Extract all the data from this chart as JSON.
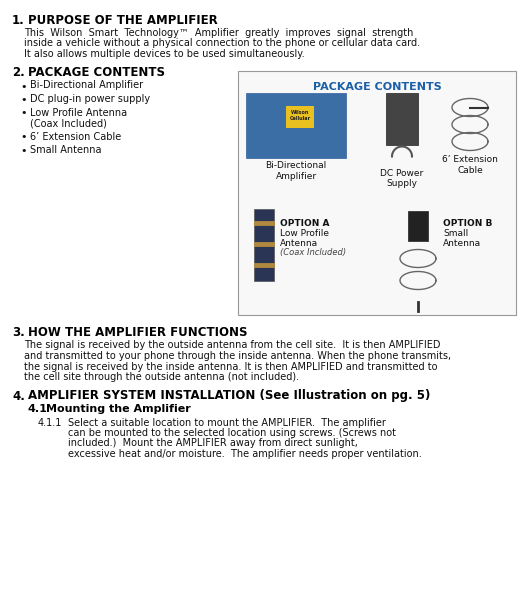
{
  "bg_color": "#ffffff",
  "section1_number": "1.",
  "section1_heading": "PURPOSE OF THE AMPLIFIER",
  "section1_body_lines": [
    "This  Wilson  Smart  Technology™  Amplifier  greatly  improves  signal  strength",
    "inside a vehicle without a physical connection to the phone or cellular data card.",
    "It also allows multiple devices to be used simultaneously."
  ],
  "section2_number": "2.",
  "section2_heading": "PACKAGE CONTENTS",
  "bullet_items": [
    [
      "Bi-Directional Amplifier"
    ],
    [
      "DC plug-in power supply"
    ],
    [
      "Low Profile Antenna",
      "(Coax Included)"
    ],
    [
      "6’ Extension Cable"
    ],
    [
      "Small Antenna"
    ]
  ],
  "section3_number": "3.",
  "section3_heading": "HOW THE AMPLIFIER FUNCTIONS",
  "section3_body_lines": [
    "The signal is received by the outside antenna from the cell site.  It is then AMPLIFIED",
    "and transmitted to your phone through the inside antenna. When the phone transmits,",
    "the signal is received by the inside antenna. It is then AMPLIFIED and transmitted to",
    "the cell site through the outside antenna (not included)."
  ],
  "section4_number": "4.",
  "section4_heading": "AMPLIFIER SYSTEM INSTALLATION (See Illustration on pg. 5)",
  "section4_1_number": "4.1",
  "section4_1_heading": "Mounting the Amplifier",
  "section4_1_1_number": "4.1.1",
  "section4_1_1_body_lines": [
    "Select a suitable location to mount the AMPLIFIER.  The amplifier",
    "can be mounted to the selected location using screws. (Screws not",
    "included.)  Mount the AMPLIFIER away from direct sunlight,",
    "excessive heat and/or moisture.  The amplifier needs proper ventilation."
  ],
  "box_title": "PACKAGE CONTENTS",
  "box_title_color": "#1a5fa8",
  "box_label1": "Bi-Directional\nAmplifier",
  "box_label2": "DC Power\nSupply",
  "box_label3": "6’ Extension\nCable",
  "box_label4a": "OPTION A",
  "box_label4b": "Low Profile\nAntenna",
  "box_label4c": "(Coax Included)",
  "box_label5a": "OPTION B",
  "box_label5b": "Small\nAntenna",
  "heading_color": "#000000",
  "body_color": "#111111",
  "box_border_color": "#999999",
  "box_bg_color": "#f8f8f8",
  "amp_color": "#3a6ea5",
  "amp_yellow": "#e8c020",
  "dc_color": "#444444",
  "cable_color": "#666666",
  "antenna_color": "#2a3555",
  "antenna_stripe": "#b08840",
  "small_ant_color": "#222222"
}
